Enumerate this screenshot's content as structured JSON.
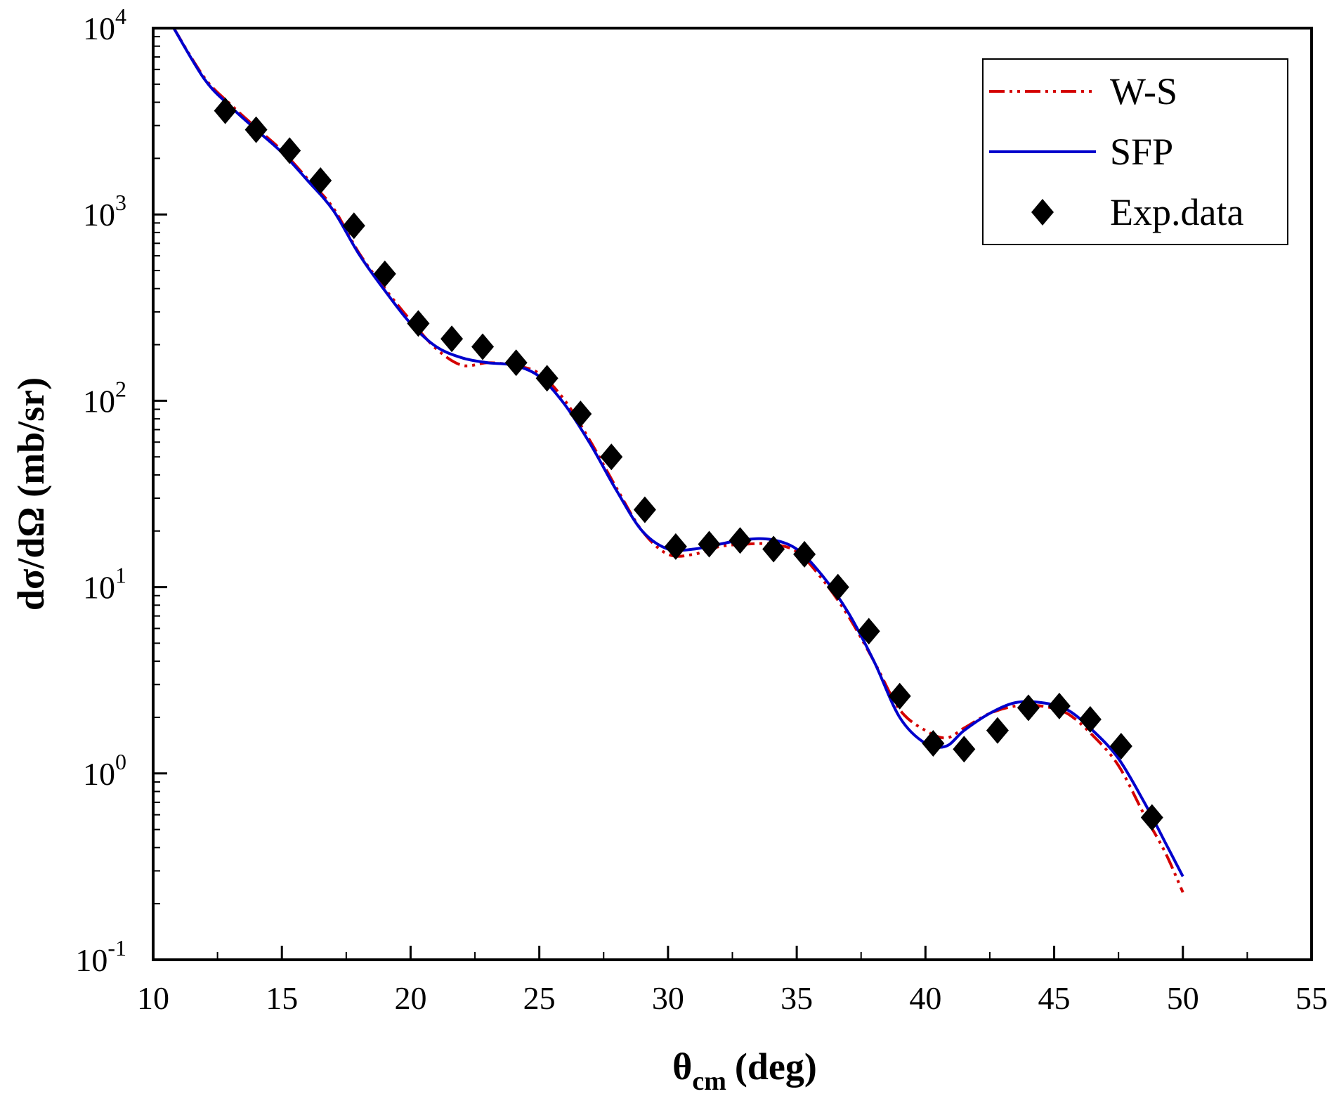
{
  "chart_data": {
    "type": "line",
    "title": "",
    "xlabel": {
      "main": "θ",
      "sub": "cm",
      "unit": "(deg)"
    },
    "ylabel": "dσ/dΩ (mb/sr)",
    "xlim": [
      10,
      55
    ],
    "ylim": [
      0.1,
      10000
    ],
    "y_scale": "log",
    "x_ticks": [
      10,
      15,
      20,
      25,
      30,
      35,
      40,
      45,
      50,
      55
    ],
    "x_tick_labels": [
      "10",
      "15",
      "20",
      "25",
      "30",
      "35",
      "40",
      "45",
      "50",
      "55"
    ],
    "y_ticks": [
      {
        "base": "10",
        "exp": "-1"
      },
      {
        "base": "10",
        "exp": "0"
      },
      {
        "base": "10",
        "exp": "1"
      },
      {
        "base": "10",
        "exp": "2"
      },
      {
        "base": "10",
        "exp": "3"
      },
      {
        "base": "10",
        "exp": "4"
      }
    ],
    "grid": false,
    "legend_position": "top-right",
    "series": [
      {
        "name": "W-S",
        "style": "dash-dot-dot",
        "color": "#d40000",
        "x": [
          10.8,
          12,
          13,
          14,
          15,
          16,
          17,
          18,
          19,
          20,
          21,
          22,
          23,
          24,
          25,
          26,
          27,
          28,
          29,
          30,
          31,
          32,
          33,
          34,
          35,
          36,
          37,
          38,
          39,
          40,
          40.8,
          41.5,
          42.5,
          43.5,
          44.5,
          45.5,
          46.5,
          47.5,
          48.5,
          49.3,
          50
        ],
        "y": [
          10000,
          5400,
          3900,
          2920,
          2200,
          1550,
          1080,
          620,
          400,
          270,
          190,
          155,
          160,
          155,
          140,
          100,
          60,
          34,
          20,
          15,
          15,
          16.5,
          17,
          17,
          15.5,
          11,
          7,
          4,
          2.2,
          1.7,
          1.55,
          1.75,
          2.1,
          2.3,
          2.3,
          2.1,
          1.6,
          1.1,
          0.6,
          0.38,
          0.23
        ]
      },
      {
        "name": "SFP",
        "style": "solid",
        "color": "#0000cc",
        "x": [
          10.8,
          12,
          13,
          14,
          15,
          16,
          17,
          18,
          19,
          20,
          21,
          22,
          23,
          24,
          25,
          26,
          27,
          28,
          29,
          30,
          31,
          32,
          33,
          34,
          35,
          36,
          37,
          38,
          39,
          40,
          40.8,
          41.5,
          42.5,
          43.5,
          44.5,
          45.5,
          46.5,
          47.5,
          48.5,
          49.3,
          50
        ],
        "y": [
          10000,
          5300,
          3800,
          2850,
          2150,
          1520,
          1050,
          610,
          390,
          260,
          195,
          170,
          160,
          155,
          135,
          95,
          58,
          33,
          20,
          16,
          16,
          17,
          18,
          18,
          16,
          11.5,
          7.3,
          4,
          2,
          1.45,
          1.4,
          1.7,
          2.1,
          2.4,
          2.4,
          2.2,
          1.7,
          1.2,
          0.7,
          0.43,
          0.28
        ]
      },
      {
        "name": "Exp.data",
        "style": "diamond",
        "color": "#000000",
        "x": [
          12.8,
          14.0,
          15.3,
          16.5,
          17.8,
          19.0,
          20.3,
          21.6,
          22.8,
          24.1,
          25.3,
          26.6,
          27.8,
          29.1,
          30.3,
          31.6,
          32.8,
          34.1,
          35.3,
          36.6,
          37.8,
          39.0,
          40.3,
          41.5,
          42.8,
          44.0,
          45.2,
          46.4,
          47.6,
          48.8
        ],
        "y": [
          3600,
          2850,
          2200,
          1520,
          870,
          480,
          260,
          215,
          195,
          160,
          132,
          85,
          50,
          26,
          16.5,
          17,
          17.8,
          16,
          15,
          10,
          5.8,
          2.6,
          1.45,
          1.35,
          1.7,
          2.25,
          2.3,
          1.95,
          1.4,
          0.58
        ]
      }
    ]
  }
}
